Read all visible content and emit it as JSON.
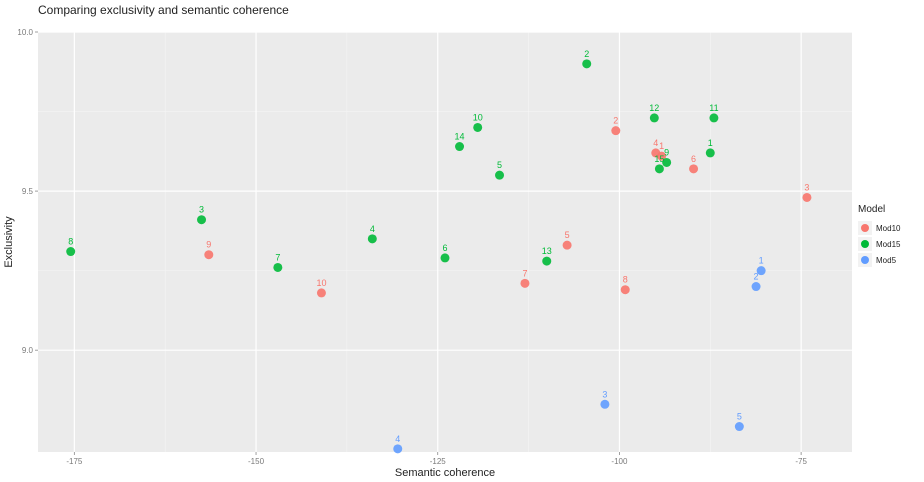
{
  "chart_data": {
    "type": "scatter",
    "title": "Comparing exclusivity and semantic coherence",
    "xlabel": "Semantic coherence",
    "ylabel": "Exclusivity",
    "xlim": [
      -180,
      -68
    ],
    "ylim": [
      8.68,
      10.0
    ],
    "x_ticks": [
      -175,
      -150,
      -125,
      -100,
      -75
    ],
    "x_tick_labels": [
      "-175",
      "-150",
      "-125",
      "-100",
      "-75"
    ],
    "y_ticks": [
      9.0,
      9.5,
      10.0
    ],
    "y_tick_labels": [
      "9.0",
      "9.5",
      "10.0"
    ],
    "grid": true,
    "legend": {
      "title": "Model",
      "position": "right"
    },
    "series": [
      {
        "name": "Mod10",
        "color": "#F8766D",
        "points": [
          {
            "label": "1",
            "x": -94.2,
            "y": 9.61
          },
          {
            "label": "2",
            "x": -100.5,
            "y": 9.69
          },
          {
            "label": "3",
            "x": -74.2,
            "y": 9.48
          },
          {
            "label": "4",
            "x": -95.0,
            "y": 9.62
          },
          {
            "label": "5",
            "x": -107.2,
            "y": 9.33
          },
          {
            "label": "6",
            "x": -89.8,
            "y": 9.57
          },
          {
            "label": "7",
            "x": -113.0,
            "y": 9.21
          },
          {
            "label": "8",
            "x": -99.2,
            "y": 9.19
          },
          {
            "label": "9",
            "x": -156.5,
            "y": 9.3
          },
          {
            "label": "10",
            "x": -141.0,
            "y": 9.18
          }
        ]
      },
      {
        "name": "Mod15",
        "color": "#00BA38",
        "points": [
          {
            "label": "1",
            "x": -87.5,
            "y": 9.62
          },
          {
            "label": "2",
            "x": -104.5,
            "y": 9.9
          },
          {
            "label": "3",
            "x": -157.5,
            "y": 9.41
          },
          {
            "label": "4",
            "x": -134.0,
            "y": 9.35
          },
          {
            "label": "5",
            "x": -116.5,
            "y": 9.55
          },
          {
            "label": "6",
            "x": -124.0,
            "y": 9.29
          },
          {
            "label": "7",
            "x": -147.0,
            "y": 9.26
          },
          {
            "label": "8",
            "x": -175.5,
            "y": 9.31
          },
          {
            "label": "9",
            "x": -93.5,
            "y": 9.59
          },
          {
            "label": "10",
            "x": -119.5,
            "y": 9.7
          },
          {
            "label": "11",
            "x": -87.0,
            "y": 9.73
          },
          {
            "label": "12",
            "x": -95.2,
            "y": 9.73
          },
          {
            "label": "13",
            "x": -110.0,
            "y": 9.28
          },
          {
            "label": "14",
            "x": -122.0,
            "y": 9.64
          },
          {
            "label": "15",
            "x": -94.5,
            "y": 9.57
          }
        ]
      },
      {
        "name": "Mod5",
        "color": "#619CFF",
        "points": [
          {
            "label": "1",
            "x": -80.5,
            "y": 9.25
          },
          {
            "label": "2",
            "x": -81.2,
            "y": 9.2
          },
          {
            "label": "3",
            "x": -102.0,
            "y": 8.83
          },
          {
            "label": "4",
            "x": -130.5,
            "y": 8.69
          },
          {
            "label": "5",
            "x": -83.5,
            "y": 8.76
          }
        ]
      }
    ]
  }
}
